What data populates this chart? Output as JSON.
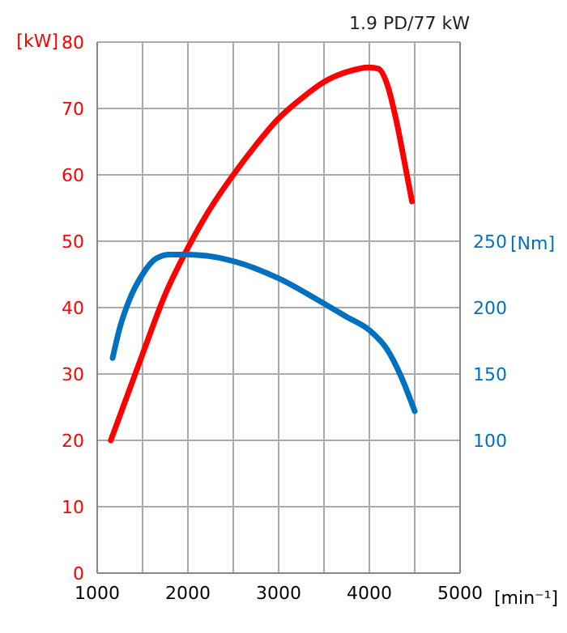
{
  "chart_data": {
    "type": "line",
    "title": "1.9 PD/77 kW",
    "xlabel": "[min⁻¹]",
    "ylabel": "[kW]",
    "y2label": "[Nm]",
    "xlim": [
      1000,
      5000
    ],
    "xticks": [
      1000,
      {
        "value": 1500,
        "label": null
      },
      2000,
      {
        "value": 2500,
        "label": null
      },
      3000,
      {
        "value": 3500,
        "label": null
      },
      4000,
      {
        "value": 4500,
        "label": null
      },
      5000
    ],
    "ylim": [
      0,
      80
    ],
    "yticks": [
      0,
      10,
      20,
      30,
      40,
      50,
      60,
      70,
      80
    ],
    "y2lim": [
      0,
      400
    ],
    "y2ticks": [
      100,
      150,
      200,
      250
    ],
    "grid": true,
    "marker": "none",
    "line_style": "solid",
    "series": [
      {
        "color": "#ff0000",
        "x": [
          1150,
          1500,
          1750,
          2000,
          2250,
          2500,
          2750,
          3000,
          3250,
          3500,
          3750,
          4000,
          4100,
          4200,
          4300,
          4400,
          4470
        ],
        "values": [
          20,
          33,
          42,
          49,
          55,
          60,
          64.5,
          68.5,
          71.5,
          74,
          75.5,
          76.2,
          76,
          73.5,
          68,
          61,
          56
        ]
      },
      {
        "color": "#0070c0",
        "axis": "y2",
        "x": [
          1170,
          1250,
          1350,
          1500,
          1650,
          1800,
          2000,
          2500,
          3000,
          3500,
          3750,
          4000,
          4200,
          4350,
          4500
        ],
        "values": [
          162,
          185,
          205,
          225,
          237,
          240,
          240,
          235,
          222,
          203,
          193,
          183,
          168,
          148,
          122
        ]
      }
    ]
  }
}
